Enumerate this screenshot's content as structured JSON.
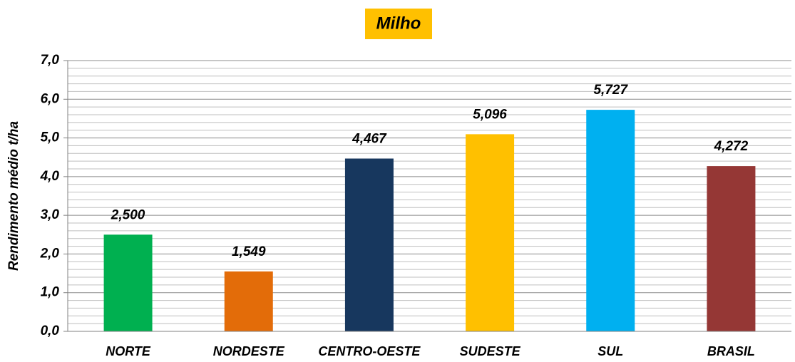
{
  "chart_data": {
    "type": "bar",
    "title": "Milho",
    "title_background": "#FFC000",
    "y_label": "Rendimento médio t/ha",
    "categories": [
      "NORTE",
      "NORDESTE",
      "CENTRO-OESTE",
      "SUDESTE",
      "SUL",
      "BRASIL"
    ],
    "values": [
      2.5,
      1.549,
      4.467,
      5.096,
      5.727,
      4.272
    ],
    "value_labels": [
      "2,500",
      "1,549",
      "4,467",
      "5,096",
      "5,727",
      "4,272"
    ],
    "colors": [
      "#00B050",
      "#E36C09",
      "#17375E",
      "#FFC000",
      "#00B0F0",
      "#953735"
    ],
    "ylim": [
      0,
      7
    ],
    "yticks": [
      {
        "value": 0,
        "label": "0,0"
      },
      {
        "value": 1,
        "label": "1,0"
      },
      {
        "value": 2,
        "label": "2,0"
      },
      {
        "value": 3,
        "label": "3,0"
      },
      {
        "value": 4,
        "label": "4,0"
      },
      {
        "value": 5,
        "label": "5,0"
      },
      {
        "value": 6,
        "label": "6,0"
      },
      {
        "value": 7,
        "label": "7,0"
      }
    ],
    "minor_yticks": [
      0.2,
      0.4,
      0.6,
      0.8,
      1.2,
      1.4,
      1.6,
      1.8,
      2.2,
      2.4,
      2.6,
      2.8,
      3.2,
      3.4,
      3.6,
      3.8,
      4.2,
      4.4,
      4.6,
      4.8,
      5.2,
      5.4,
      5.6,
      5.8,
      6.2,
      6.4,
      6.6,
      6.8
    ],
    "grid": true
  }
}
